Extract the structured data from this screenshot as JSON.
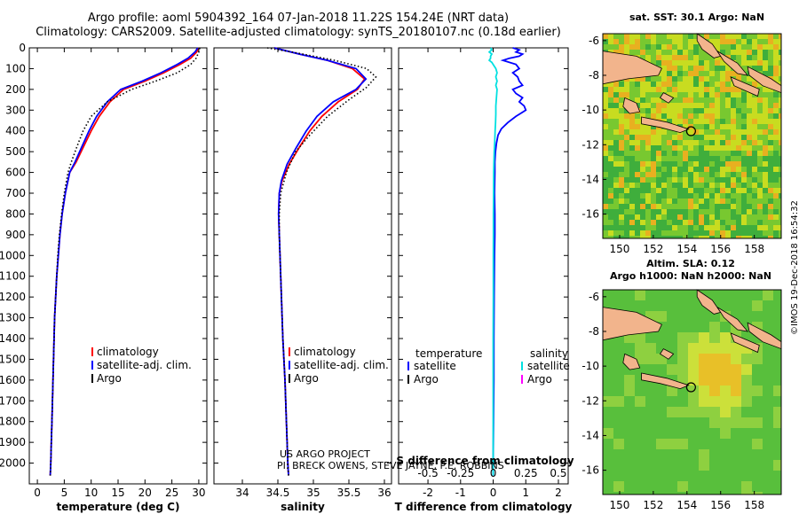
{
  "header": {
    "line1": "Argo profile: aoml 5904392_164 07-Jan-2018 11.22S 154.24E (NRT data)",
    "line2": "Climatology: CARS2009. Satellite-adjusted climatology: synTS_20180107.nc (0.18d earlier)"
  },
  "credit": "©IMOS 19-Dec-2018 16:54:32",
  "colors": {
    "climatology": "#ff0000",
    "satellite": "#0000ff",
    "argo": "#000000",
    "sat_salinity": "#00e0e0",
    "argo_salinity": "#ff00ff",
    "land": "#f2b48c",
    "map_green": "#3fbf3f",
    "map_yellow": "#e6e600"
  },
  "depth_axis": {
    "min": 0,
    "max": 2100,
    "ticks": [
      0,
      100,
      200,
      300,
      400,
      500,
      600,
      700,
      800,
      900,
      1000,
      1100,
      1200,
      1300,
      1400,
      1500,
      1600,
      1700,
      1800,
      1900,
      2000
    ]
  },
  "chart_data": [
    {
      "type": "line",
      "id": "temperature",
      "xlabel": "temperature (deg C)",
      "xlim": [
        -1.5,
        31.5
      ],
      "xticks": [
        0,
        5,
        10,
        15,
        20,
        25,
        30
      ],
      "legend": [
        "climatology",
        "satellite-adj. clim.",
        "Argo"
      ],
      "series": [
        {
          "name": "climatology",
          "color": "#ff0000",
          "points": [
            [
              30,
              0
            ],
            [
              29.6,
              20
            ],
            [
              28.5,
              50
            ],
            [
              26.5,
              80
            ],
            [
              23.5,
              120
            ],
            [
              20,
              160
            ],
            [
              16,
              200
            ],
            [
              13.5,
              260
            ],
            [
              11.5,
              330
            ],
            [
              10,
              400
            ],
            [
              8.5,
              480
            ],
            [
              7.2,
              550
            ],
            [
              6,
              600
            ],
            [
              5.2,
              700
            ],
            [
              4.6,
              800
            ],
            [
              4.2,
              900
            ],
            [
              3.9,
              1000
            ],
            [
              3.6,
              1100
            ],
            [
              3.4,
              1200
            ],
            [
              3.2,
              1300
            ],
            [
              3.1,
              1400
            ],
            [
              3,
              1500
            ],
            [
              2.9,
              1600
            ],
            [
              2.8,
              1700
            ],
            [
              2.7,
              1800
            ],
            [
              2.6,
              1900
            ],
            [
              2.5,
              2000
            ],
            [
              2.4,
              2060
            ]
          ]
        },
        {
          "name": "satellite-adj. clim.",
          "color": "#0000ff",
          "points": [
            [
              29.8,
              0
            ],
            [
              29.3,
              20
            ],
            [
              28,
              50
            ],
            [
              26,
              80
            ],
            [
              23,
              120
            ],
            [
              19.5,
              160
            ],
            [
              15.5,
              200
            ],
            [
              13,
              260
            ],
            [
              11,
              330
            ],
            [
              9.6,
              400
            ],
            [
              8.2,
              480
            ],
            [
              7,
              550
            ],
            [
              6,
              600
            ],
            [
              5.2,
              700
            ],
            [
              4.6,
              800
            ],
            [
              4.2,
              900
            ],
            [
              3.9,
              1000
            ],
            [
              3.6,
              1100
            ],
            [
              3.4,
              1200
            ],
            [
              3.2,
              1300
            ],
            [
              3.1,
              1400
            ],
            [
              3,
              1500
            ],
            [
              2.9,
              1600
            ],
            [
              2.8,
              1700
            ],
            [
              2.7,
              1800
            ],
            [
              2.6,
              1900
            ],
            [
              2.5,
              2000
            ],
            [
              2.4,
              2060
            ]
          ]
        },
        {
          "name": "Argo",
          "color": "#000000",
          "dotted": true,
          "points": [
            [
              30.2,
              0
            ],
            [
              30,
              20
            ],
            [
              29.5,
              50
            ],
            [
              28.5,
              80
            ],
            [
              26,
              120
            ],
            [
              22,
              160
            ],
            [
              17.5,
              200
            ],
            [
              13,
              260
            ],
            [
              10,
              330
            ],
            [
              8.5,
              400
            ],
            [
              7.3,
              480
            ],
            [
              6.3,
              550
            ],
            [
              5.7,
              600
            ],
            [
              5,
              700
            ],
            [
              4.5,
              800
            ],
            [
              4.1,
              900
            ],
            [
              3.8,
              1000
            ],
            [
              3.6,
              1100
            ],
            [
              3.4,
              1200
            ],
            [
              3.2,
              1300
            ],
            [
              3.1,
              1400
            ],
            [
              3,
              1500
            ],
            [
              2.9,
              1600
            ],
            [
              2.8,
              1700
            ],
            [
              2.7,
              1800
            ],
            [
              2.6,
              1900
            ],
            [
              2.5,
              2000
            ],
            [
              2.4,
              2060
            ]
          ]
        }
      ]
    },
    {
      "type": "line",
      "id": "salinity",
      "xlabel": "salinity",
      "xlim": [
        33.6,
        36.1
      ],
      "xticks": [
        34,
        34.5,
        35,
        35.5,
        36
      ],
      "legend": [
        "climatology",
        "satellite-adj. clim.",
        "Argo"
      ],
      "series": [
        {
          "name": "climatology",
          "color": "#ff0000",
          "points": [
            [
              34.45,
              0
            ],
            [
              34.8,
              30
            ],
            [
              35.2,
              60
            ],
            [
              35.55,
              100
            ],
            [
              35.72,
              150
            ],
            [
              35.62,
              200
            ],
            [
              35.35,
              260
            ],
            [
              35.12,
              330
            ],
            [
              34.95,
              400
            ],
            [
              34.8,
              480
            ],
            [
              34.66,
              560
            ],
            [
              34.56,
              640
            ],
            [
              34.52,
              700
            ],
            [
              34.51,
              800
            ],
            [
              34.52,
              900
            ],
            [
              34.53,
              1000
            ],
            [
              34.55,
              1200
            ],
            [
              34.57,
              1400
            ],
            [
              34.6,
              1600
            ],
            [
              34.62,
              1800
            ],
            [
              34.64,
              2000
            ],
            [
              34.65,
              2060
            ]
          ]
        },
        {
          "name": "satellite-adj. clim.",
          "color": "#0000ff",
          "points": [
            [
              34.45,
              0
            ],
            [
              34.8,
              30
            ],
            [
              35.2,
              60
            ],
            [
              35.6,
              100
            ],
            [
              35.74,
              150
            ],
            [
              35.6,
              200
            ],
            [
              35.28,
              260
            ],
            [
              35.05,
              330
            ],
            [
              34.9,
              400
            ],
            [
              34.76,
              480
            ],
            [
              34.63,
              560
            ],
            [
              34.55,
              640
            ],
            [
              34.52,
              700
            ],
            [
              34.51,
              800
            ],
            [
              34.52,
              900
            ],
            [
              34.53,
              1000
            ],
            [
              34.55,
              1200
            ],
            [
              34.57,
              1400
            ],
            [
              34.6,
              1600
            ],
            [
              34.62,
              1800
            ],
            [
              34.64,
              2000
            ],
            [
              34.65,
              2060
            ]
          ]
        },
        {
          "name": "Argo",
          "color": "#000000",
          "dotted": true,
          "points": [
            [
              34.35,
              0
            ],
            [
              34.7,
              20
            ],
            [
              35.3,
              60
            ],
            [
              35.75,
              100
            ],
            [
              35.88,
              140
            ],
            [
              35.75,
              190
            ],
            [
              35.5,
              250
            ],
            [
              35.2,
              330
            ],
            [
              34.95,
              420
            ],
            [
              34.75,
              500
            ],
            [
              34.62,
              600
            ],
            [
              34.54,
              700
            ],
            [
              34.52,
              800
            ],
            [
              34.52,
              900
            ],
            [
              34.53,
              1000
            ],
            [
              34.55,
              1200
            ],
            [
              34.57,
              1400
            ],
            [
              34.6,
              1600
            ],
            [
              34.62,
              1800
            ],
            [
              34.64,
              2000
            ],
            [
              34.65,
              2060
            ]
          ]
        }
      ]
    },
    {
      "type": "line",
      "id": "difference",
      "xlabel": "T difference from climatology",
      "xlabel_top": "S difference from climatology",
      "xlim": [
        -2.9,
        2.3
      ],
      "xticks": [
        -2,
        -1,
        0,
        1,
        2
      ],
      "xlim_top": [
        -0.725,
        0.575
      ],
      "xticks_top": [
        -0.5,
        -0.25,
        0,
        0.25,
        0.5
      ],
      "xticklabels_top": [
        "-0.5",
        "-0.25",
        "0",
        "0.25",
        "0.5"
      ],
      "legend_left_title": "temperature",
      "legend_right_title": "salinity",
      "legend_left": [
        "satellite",
        "Argo"
      ],
      "legend_right": [
        "satellite",
        "Argo"
      ],
      "series": [
        {
          "name": "satellite T",
          "color": "#0000ff",
          "points": [
            [
              0.6,
              0
            ],
            [
              0.8,
              10
            ],
            [
              0.7,
              20
            ],
            [
              0.9,
              30
            ],
            [
              0.8,
              40
            ],
            [
              0.5,
              50
            ],
            [
              0.3,
              60
            ],
            [
              0.7,
              80
            ],
            [
              0.8,
              100
            ],
            [
              0.6,
              120
            ],
            [
              0.75,
              140
            ],
            [
              0.8,
              160
            ],
            [
              0.9,
              180
            ],
            [
              0.6,
              200
            ],
            [
              0.7,
              220
            ],
            [
              0.9,
              240
            ],
            [
              0.8,
              260
            ],
            [
              0.95,
              280
            ],
            [
              1.0,
              300
            ],
            [
              0.7,
              330
            ],
            [
              0.45,
              360
            ],
            [
              0.25,
              390
            ],
            [
              0.15,
              420
            ],
            [
              0.1,
              460
            ],
            [
              0.07,
              500
            ],
            [
              0.05,
              550
            ],
            [
              0.05,
              600
            ],
            [
              0.04,
              700
            ],
            [
              0.05,
              800
            ],
            [
              0.05,
              900
            ],
            [
              0.04,
              1000
            ],
            [
              0.03,
              1200
            ],
            [
              0.02,
              1400
            ],
            [
              0.02,
              1600
            ],
            [
              0.01,
              1800
            ],
            [
              0.0,
              2000
            ],
            [
              0.0,
              2060
            ]
          ]
        },
        {
          "name": "satellite S",
          "color": "#00e0e0",
          "axis": "top",
          "points": [
            [
              -0.02,
              0
            ],
            [
              -0.01,
              10
            ],
            [
              -0.03,
              20
            ],
            [
              -0.01,
              30
            ],
            [
              -0.02,
              40
            ],
            [
              -0.02,
              50
            ],
            [
              -0.03,
              60
            ],
            [
              -0.01,
              70
            ],
            [
              0,
              80
            ],
            [
              0.02,
              100
            ],
            [
              0.03,
              120
            ],
            [
              0.02,
              140
            ],
            [
              0.03,
              160
            ],
            [
              0.02,
              180
            ],
            [
              0.03,
              200
            ],
            [
              0.025,
              240
            ],
            [
              0.02,
              280
            ],
            [
              0.02,
              320
            ],
            [
              0.018,
              360
            ],
            [
              0.015,
              400
            ],
            [
              0.012,
              450
            ],
            [
              0.008,
              500
            ],
            [
              0.005,
              560
            ],
            [
              0.004,
              600
            ],
            [
              0.003,
              700
            ],
            [
              0.002,
              800
            ],
            [
              0.002,
              900
            ],
            [
              0.001,
              1000
            ],
            [
              0.001,
              1200
            ],
            [
              0,
              1400
            ],
            [
              0,
              1600
            ],
            [
              0,
              1800
            ],
            [
              0,
              2000
            ],
            [
              0,
              2060
            ]
          ]
        }
      ]
    },
    {
      "type": "heatmap",
      "id": "sst-map",
      "title": "sat. SST: 30.1 Argo: NaN",
      "xticks": [
        150,
        152,
        154,
        156,
        158
      ],
      "yticks": [
        -6,
        -8,
        -10,
        -12,
        -14,
        -16
      ],
      "xlim": [
        149,
        159.6
      ],
      "ylim": [
        -17.4,
        -5.6
      ],
      "marker": {
        "lon": 154.24,
        "lat": -11.22
      }
    },
    {
      "type": "heatmap",
      "id": "sla-map",
      "title1": "Altim. SLA: 0.12",
      "title2": "Argo h1000: NaN h2000: NaN",
      "xticks": [
        150,
        152,
        154,
        156,
        158
      ],
      "yticks": [
        -6,
        -8,
        -10,
        -12,
        -14,
        -16
      ],
      "xlim": [
        149,
        159.6
      ],
      "ylim": [
        -17.4,
        -5.6
      ],
      "marker": {
        "lon": 154.24,
        "lat": -11.22
      }
    }
  ],
  "annotation": {
    "line1": "US ARGO PROJECT",
    "line2": "PI: BRECK OWENS, STEVE JAYNE, P.E. ROBBINS"
  }
}
